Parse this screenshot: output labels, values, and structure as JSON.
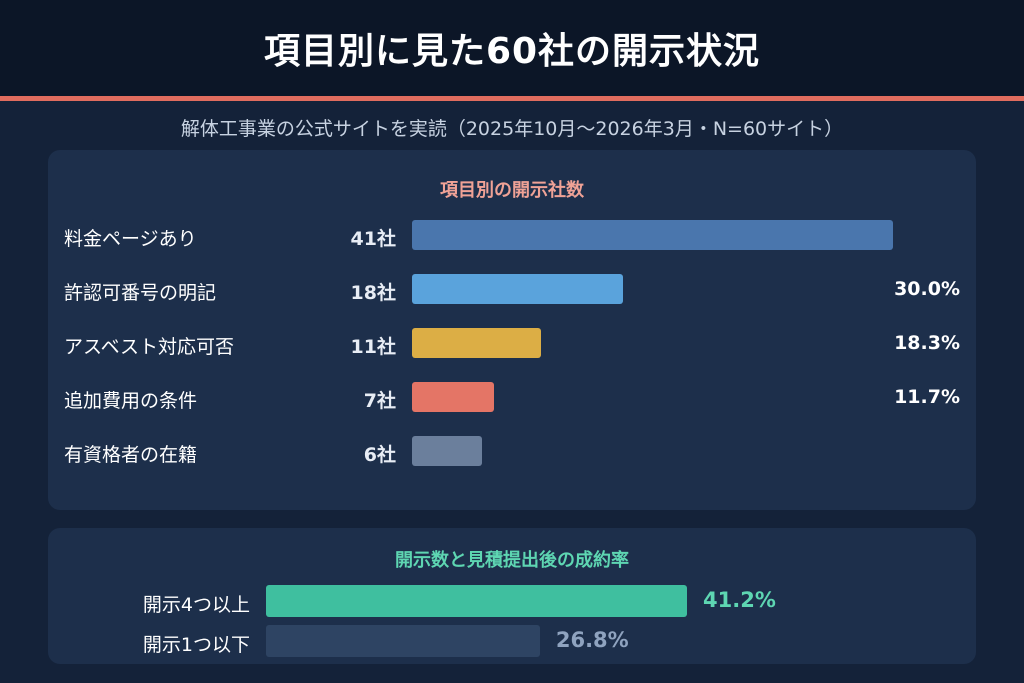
{
  "title": "項目別に見た60社の開示状況",
  "subtitle": "解体工事業の公式サイトを実読（2025年10月〜2026年3月・N=60サイト）",
  "colors": {
    "accent": "#e06c5e",
    "panel1_title": "#f0a296",
    "panel2_title": "#5ed6b2",
    "high_value": "#5ed6b2",
    "low_value": "#8fa3bf"
  },
  "chart_data": [
    {
      "type": "bar",
      "orientation": "horizontal",
      "title": "項目別の開示社数",
      "categories": [
        "料金ページあり",
        "許認可番号の明記",
        "アスベスト対応可否",
        "追加費用の条件",
        "有資格者の在籍"
      ],
      "values": [
        41,
        18,
        11,
        7,
        6
      ],
      "count_labels": [
        "41社",
        "18社",
        "11社",
        "7社",
        "6社"
      ],
      "percent_labels": [
        "",
        "30.0%",
        "18.3%",
        "11.7%",
        ""
      ],
      "colors": [
        "#4a76ad",
        "#5aa3dc",
        "#dcae45",
        "#e47566",
        "#6b7f9c"
      ],
      "xlim": [
        0,
        41
      ]
    },
    {
      "type": "bar",
      "orientation": "horizontal",
      "title": "開示数と見積提出後の成約率",
      "categories": [
        "開示4つ以上",
        "開示1つ以下"
      ],
      "values": [
        41.2,
        26.8
      ],
      "value_labels": [
        "41.2%",
        "26.8%"
      ],
      "colors": [
        "#3fbf9f",
        "#2e4463"
      ],
      "xlim": [
        0,
        41.2
      ]
    }
  ]
}
